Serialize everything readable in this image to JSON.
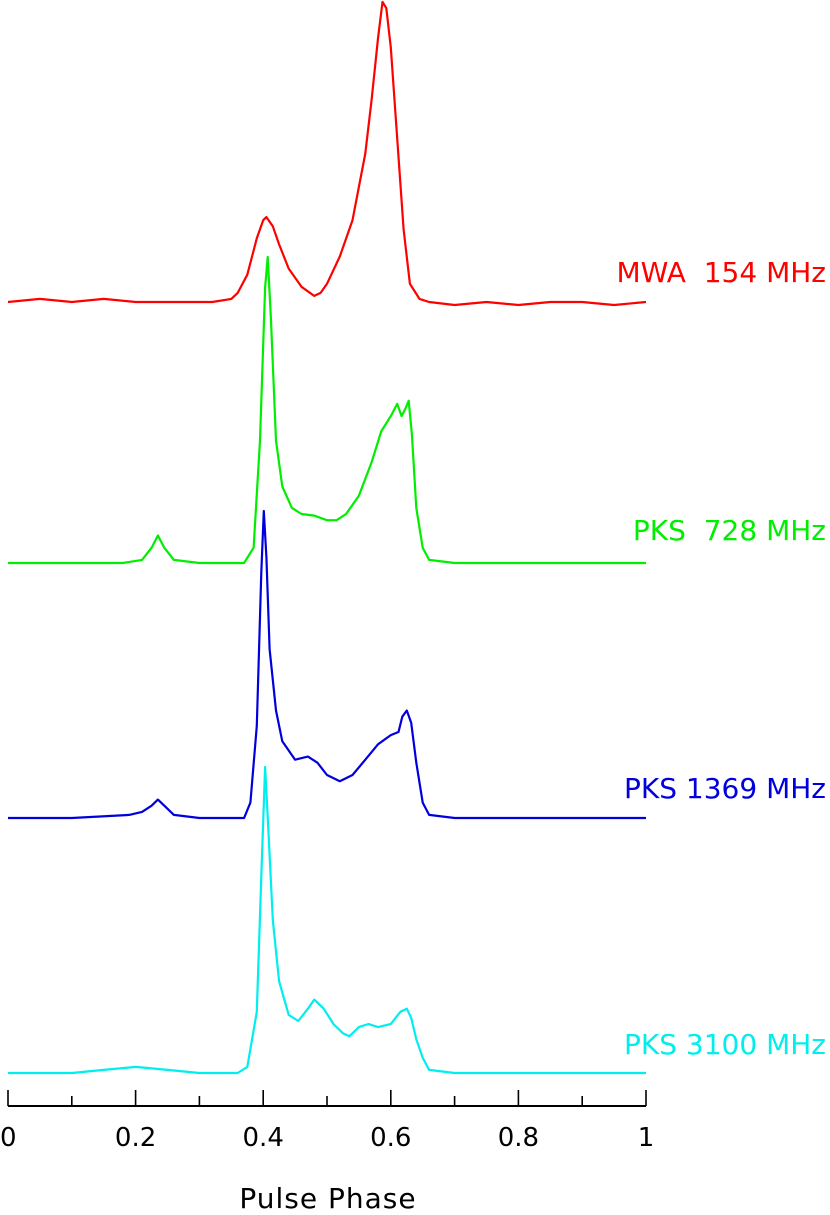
{
  "chart_data": {
    "type": "line",
    "title": "",
    "xlabel": "Pulse Phase",
    "ylabel": "",
    "xlim": [
      0,
      1
    ],
    "x_ticks": [
      "0",
      "0.2",
      "0.4",
      "0.6",
      "0.8",
      "1"
    ],
    "x_tick_values": [
      0,
      0.2,
      0.4,
      0.6,
      0.8,
      1
    ],
    "x_minor_step": 0.1,
    "grid": false,
    "legend": "right-side labels next to each profile",
    "y_units": "normalized intensity (stacked, peak = 1)",
    "series": [
      {
        "name": "MWA  154 MHz",
        "color": "#ff0000",
        "points": [
          [
            0.0,
            0.01
          ],
          [
            0.05,
            0.02
          ],
          [
            0.1,
            0.01
          ],
          [
            0.15,
            0.02
          ],
          [
            0.2,
            0.01
          ],
          [
            0.25,
            0.01
          ],
          [
            0.3,
            0.01
          ],
          [
            0.32,
            0.01
          ],
          [
            0.35,
            0.02
          ],
          [
            0.36,
            0.04
          ],
          [
            0.375,
            0.1
          ],
          [
            0.39,
            0.22
          ],
          [
            0.4,
            0.28
          ],
          [
            0.405,
            0.29
          ],
          [
            0.415,
            0.26
          ],
          [
            0.425,
            0.2
          ],
          [
            0.44,
            0.12
          ],
          [
            0.46,
            0.06
          ],
          [
            0.48,
            0.03
          ],
          [
            0.49,
            0.04
          ],
          [
            0.5,
            0.07
          ],
          [
            0.52,
            0.16
          ],
          [
            0.54,
            0.28
          ],
          [
            0.56,
            0.5
          ],
          [
            0.57,
            0.68
          ],
          [
            0.58,
            0.88
          ],
          [
            0.587,
            1.0
          ],
          [
            0.593,
            0.98
          ],
          [
            0.6,
            0.85
          ],
          [
            0.61,
            0.55
          ],
          [
            0.62,
            0.25
          ],
          [
            0.63,
            0.07
          ],
          [
            0.645,
            0.02
          ],
          [
            0.66,
            0.01
          ],
          [
            0.7,
            0.0
          ],
          [
            0.75,
            0.01
          ],
          [
            0.8,
            0.0
          ],
          [
            0.85,
            0.01
          ],
          [
            0.9,
            0.01
          ],
          [
            0.95,
            0.0
          ],
          [
            1.0,
            0.01
          ]
        ]
      },
      {
        "name": "PKS  728 MHz",
        "color": "#00ee00",
        "points": [
          [
            0.0,
            0.0
          ],
          [
            0.1,
            0.0
          ],
          [
            0.18,
            0.0
          ],
          [
            0.21,
            0.01
          ],
          [
            0.225,
            0.05
          ],
          [
            0.235,
            0.09
          ],
          [
            0.245,
            0.05
          ],
          [
            0.26,
            0.01
          ],
          [
            0.3,
            0.0
          ],
          [
            0.37,
            0.0
          ],
          [
            0.385,
            0.05
          ],
          [
            0.395,
            0.4
          ],
          [
            0.403,
            0.9
          ],
          [
            0.407,
            1.0
          ],
          [
            0.412,
            0.8
          ],
          [
            0.42,
            0.4
          ],
          [
            0.43,
            0.25
          ],
          [
            0.445,
            0.18
          ],
          [
            0.46,
            0.16
          ],
          [
            0.48,
            0.155
          ],
          [
            0.5,
            0.14
          ],
          [
            0.515,
            0.14
          ],
          [
            0.53,
            0.16
          ],
          [
            0.55,
            0.22
          ],
          [
            0.57,
            0.33
          ],
          [
            0.585,
            0.43
          ],
          [
            0.6,
            0.48
          ],
          [
            0.61,
            0.52
          ],
          [
            0.617,
            0.48
          ],
          [
            0.622,
            0.5
          ],
          [
            0.628,
            0.53
          ],
          [
            0.633,
            0.42
          ],
          [
            0.64,
            0.18
          ],
          [
            0.65,
            0.05
          ],
          [
            0.66,
            0.01
          ],
          [
            0.7,
            0.0
          ],
          [
            0.8,
            0.0
          ],
          [
            0.9,
            0.0
          ],
          [
            1.0,
            0.0
          ]
        ]
      },
      {
        "name": "PKS 1369 MHz",
        "color": "#0000dd",
        "points": [
          [
            0.0,
            0.0
          ],
          [
            0.1,
            0.0
          ],
          [
            0.19,
            0.01
          ],
          [
            0.21,
            0.02
          ],
          [
            0.225,
            0.04
          ],
          [
            0.235,
            0.06
          ],
          [
            0.245,
            0.04
          ],
          [
            0.26,
            0.01
          ],
          [
            0.3,
            0.0
          ],
          [
            0.37,
            0.0
          ],
          [
            0.38,
            0.05
          ],
          [
            0.39,
            0.3
          ],
          [
            0.397,
            0.8
          ],
          [
            0.401,
            1.0
          ],
          [
            0.405,
            0.85
          ],
          [
            0.41,
            0.55
          ],
          [
            0.42,
            0.35
          ],
          [
            0.43,
            0.25
          ],
          [
            0.45,
            0.19
          ],
          [
            0.47,
            0.2
          ],
          [
            0.485,
            0.18
          ],
          [
            0.5,
            0.14
          ],
          [
            0.52,
            0.12
          ],
          [
            0.54,
            0.14
          ],
          [
            0.56,
            0.19
          ],
          [
            0.58,
            0.24
          ],
          [
            0.6,
            0.27
          ],
          [
            0.612,
            0.28
          ],
          [
            0.618,
            0.33
          ],
          [
            0.625,
            0.35
          ],
          [
            0.632,
            0.31
          ],
          [
            0.64,
            0.18
          ],
          [
            0.65,
            0.05
          ],
          [
            0.66,
            0.01
          ],
          [
            0.7,
            0.0
          ],
          [
            0.8,
            0.0
          ],
          [
            0.9,
            0.0
          ],
          [
            1.0,
            0.0
          ]
        ]
      },
      {
        "name": "PKS 3100 MHz",
        "color": "#00eeee",
        "points": [
          [
            0.0,
            0.0
          ],
          [
            0.1,
            0.0
          ],
          [
            0.15,
            0.01
          ],
          [
            0.2,
            0.02
          ],
          [
            0.25,
            0.01
          ],
          [
            0.3,
            0.0
          ],
          [
            0.36,
            0.0
          ],
          [
            0.375,
            0.02
          ],
          [
            0.39,
            0.2
          ],
          [
            0.398,
            0.7
          ],
          [
            0.403,
            1.0
          ],
          [
            0.408,
            0.8
          ],
          [
            0.415,
            0.5
          ],
          [
            0.425,
            0.3
          ],
          [
            0.44,
            0.19
          ],
          [
            0.455,
            0.17
          ],
          [
            0.47,
            0.21
          ],
          [
            0.48,
            0.24
          ],
          [
            0.495,
            0.21
          ],
          [
            0.51,
            0.16
          ],
          [
            0.525,
            0.13
          ],
          [
            0.535,
            0.12
          ],
          [
            0.55,
            0.15
          ],
          [
            0.565,
            0.16
          ],
          [
            0.58,
            0.15
          ],
          [
            0.6,
            0.16
          ],
          [
            0.615,
            0.2
          ],
          [
            0.625,
            0.21
          ],
          [
            0.632,
            0.18
          ],
          [
            0.64,
            0.11
          ],
          [
            0.65,
            0.05
          ],
          [
            0.66,
            0.01
          ],
          [
            0.7,
            0.0
          ],
          [
            0.8,
            0.0
          ],
          [
            0.9,
            0.0
          ],
          [
            1.0,
            0.0
          ]
        ]
      }
    ]
  }
}
